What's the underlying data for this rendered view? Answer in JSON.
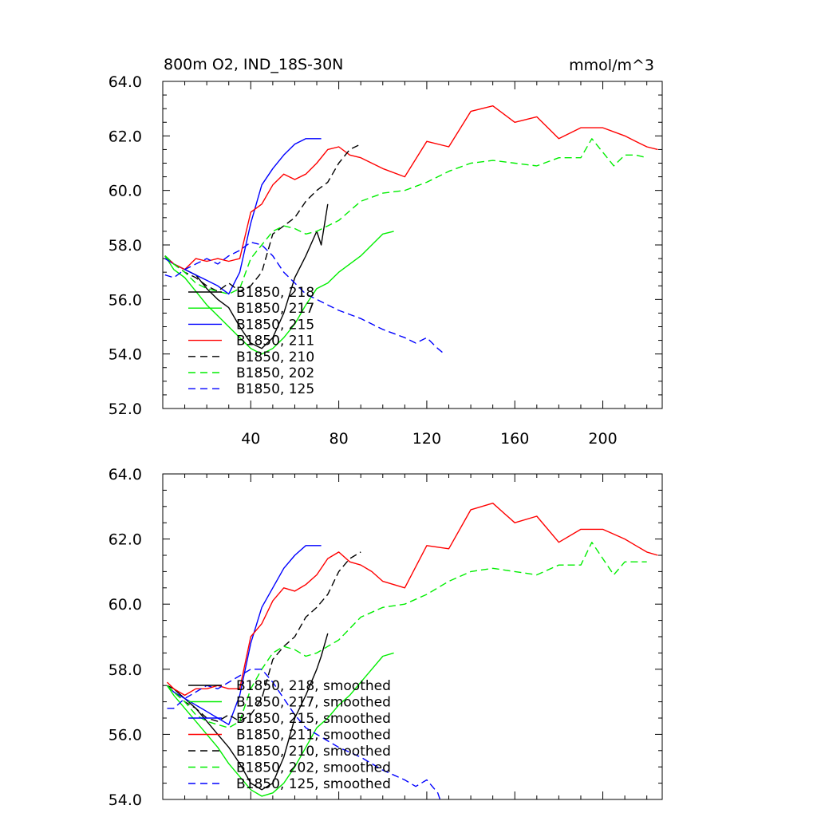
{
  "page": {
    "title": "800m O2, IND_18S-30N",
    "units": "mmol/m^3"
  },
  "chart_data": [
    {
      "type": "line",
      "title": "800m O2, IND_18S-30N",
      "units": "mmol/m^3",
      "xlim": [
        0,
        227
      ],
      "ylim": [
        52,
        64
      ],
      "xticks": [
        40,
        80,
        120,
        160,
        200
      ],
      "xtick_labels": [
        "40",
        "80",
        "120",
        "160",
        "200"
      ],
      "yticks": [
        52,
        54,
        56,
        58,
        60,
        62,
        64
      ],
      "ytick_labels": [
        "52.0",
        "54.0",
        "56.0",
        "58.0",
        "60.0",
        "62.0",
        "64.0"
      ],
      "legend_position": "bottom-left",
      "series": [
        {
          "name": "B1850, 218",
          "color": "#000000",
          "dash": "solid",
          "x": [
            1,
            5,
            10,
            15,
            20,
            25,
            30,
            35,
            40,
            45,
            50,
            55,
            60,
            65,
            70,
            72,
            75
          ],
          "y": [
            57.6,
            57.3,
            57.1,
            56.9,
            56.4,
            56.0,
            55.7,
            55.0,
            54.4,
            54.2,
            54.6,
            55.5,
            56.8,
            57.6,
            58.5,
            58.0,
            59.5
          ]
        },
        {
          "name": "B1850, 217",
          "color": "#00ee00",
          "dash": "solid",
          "x": [
            1,
            5,
            10,
            15,
            20,
            25,
            30,
            35,
            40,
            45,
            50,
            55,
            60,
            65,
            70,
            75,
            80,
            85,
            90,
            95,
            100,
            105
          ],
          "y": [
            57.6,
            57.1,
            56.8,
            56.3,
            55.8,
            55.4,
            55.0,
            54.6,
            54.2,
            54.0,
            54.2,
            54.6,
            55.1,
            55.8,
            56.4,
            56.6,
            57.0,
            57.3,
            57.6,
            58.0,
            58.4,
            58.5
          ]
        },
        {
          "name": "B1850, 215",
          "color": "#0000ff",
          "dash": "solid",
          "x": [
            1,
            5,
            10,
            15,
            20,
            25,
            30,
            35,
            40,
            45,
            50,
            55,
            60,
            65,
            70,
            72
          ],
          "y": [
            57.5,
            57.3,
            57.1,
            56.9,
            56.7,
            56.5,
            56.2,
            57.0,
            58.8,
            60.2,
            60.8,
            61.3,
            61.7,
            61.9,
            61.9,
            61.9
          ]
        },
        {
          "name": "B1850, 211",
          "color": "#ff0000",
          "dash": "solid",
          "x": [
            1,
            5,
            10,
            15,
            20,
            25,
            30,
            35,
            40,
            45,
            50,
            55,
            60,
            65,
            70,
            75,
            80,
            85,
            90,
            95,
            100,
            110,
            120,
            130,
            140,
            150,
            160,
            170,
            180,
            190,
            200,
            210,
            215,
            220,
            225
          ],
          "y": [
            57.6,
            57.3,
            57.1,
            57.5,
            57.4,
            57.5,
            57.4,
            57.5,
            59.2,
            59.5,
            60.2,
            60.6,
            60.4,
            60.6,
            61.0,
            61.5,
            61.6,
            61.3,
            61.2,
            61.0,
            60.8,
            60.5,
            61.8,
            61.6,
            62.9,
            63.1,
            62.5,
            62.7,
            61.9,
            62.3,
            62.3,
            62.0,
            61.8,
            61.6,
            61.5
          ]
        },
        {
          "name": "B1850, 210",
          "color": "#000000",
          "dash": "dash",
          "x": [
            1,
            5,
            10,
            15,
            20,
            25,
            30,
            35,
            40,
            45,
            50,
            55,
            60,
            65,
            70,
            75,
            80,
            85,
            90
          ],
          "y": [
            57.6,
            57.3,
            57.0,
            56.8,
            56.5,
            56.3,
            56.6,
            56.3,
            56.5,
            57.0,
            58.4,
            58.7,
            59.0,
            59.6,
            60.0,
            60.3,
            61.0,
            61.5,
            61.7
          ]
        },
        {
          "name": "B1850, 202",
          "color": "#00ee00",
          "dash": "dash",
          "x": [
            1,
            5,
            10,
            15,
            20,
            25,
            30,
            35,
            40,
            45,
            50,
            55,
            60,
            65,
            70,
            75,
            80,
            90,
            100,
            110,
            120,
            130,
            140,
            150,
            160,
            170,
            180,
            190,
            195,
            200,
            205,
            210,
            215,
            220
          ],
          "y": [
            57.6,
            57.3,
            57.0,
            56.6,
            56.4,
            56.3,
            56.2,
            56.4,
            57.5,
            58.0,
            58.5,
            58.7,
            58.6,
            58.4,
            58.5,
            58.7,
            58.9,
            59.6,
            59.9,
            60.0,
            60.3,
            60.7,
            61.0,
            61.1,
            61.0,
            60.9,
            61.2,
            61.2,
            61.9,
            61.4,
            60.9,
            61.3,
            61.3,
            61.2
          ]
        },
        {
          "name": "B1850, 125",
          "color": "#0000ff",
          "dash": "dash",
          "x": [
            1,
            5,
            10,
            15,
            20,
            25,
            30,
            35,
            40,
            45,
            50,
            55,
            60,
            65,
            70,
            75,
            80,
            90,
            100,
            110,
            115,
            120,
            125,
            128
          ],
          "y": [
            56.9,
            56.8,
            57.1,
            57.3,
            57.5,
            57.3,
            57.6,
            57.8,
            58.1,
            58.0,
            57.6,
            57.0,
            56.6,
            56.2,
            56.0,
            55.8,
            55.6,
            55.3,
            54.9,
            54.6,
            54.4,
            54.6,
            54.2,
            54.0
          ]
        }
      ]
    },
    {
      "type": "line",
      "xlim": [
        0,
        227
      ],
      "ylim": [
        54,
        64
      ],
      "xticks": [
        40,
        80,
        120,
        160,
        200
      ],
      "xtick_labels": [],
      "yticks": [
        54,
        56,
        58,
        60,
        62,
        64
      ],
      "ytick_labels": [
        "54.0",
        "56.0",
        "58.0",
        "60.0",
        "62.0",
        "64.0"
      ],
      "legend_position": "bottom-left",
      "series": [
        {
          "name": "B1850, 218, smoothed",
          "color": "#000000",
          "dash": "solid",
          "x": [
            2,
            5,
            10,
            15,
            20,
            25,
            30,
            35,
            40,
            45,
            50,
            55,
            60,
            65,
            70,
            72,
            75
          ],
          "y": [
            57.5,
            57.4,
            57.1,
            56.8,
            56.4,
            56.0,
            55.6,
            55.1,
            54.5,
            54.3,
            54.5,
            55.3,
            56.5,
            57.2,
            58.0,
            58.4,
            59.1
          ]
        },
        {
          "name": "B1850, 217, smoothed",
          "color": "#00ee00",
          "dash": "solid",
          "x": [
            2,
            5,
            10,
            15,
            20,
            25,
            30,
            35,
            40,
            45,
            50,
            55,
            60,
            65,
            70,
            75,
            80,
            85,
            90,
            95,
            100,
            105
          ],
          "y": [
            57.5,
            57.2,
            56.8,
            56.4,
            56.0,
            55.6,
            55.1,
            54.7,
            54.3,
            54.1,
            54.2,
            54.5,
            55.0,
            55.6,
            56.2,
            56.5,
            56.9,
            57.2,
            57.6,
            58.0,
            58.4,
            58.5
          ]
        },
        {
          "name": "B1850, 215, smoothed",
          "color": "#0000ff",
          "dash": "solid",
          "x": [
            2,
            5,
            10,
            15,
            20,
            25,
            30,
            35,
            40,
            45,
            50,
            55,
            60,
            65,
            70,
            72
          ],
          "y": [
            57.5,
            57.3,
            57.1,
            56.9,
            56.7,
            56.5,
            56.3,
            57.2,
            58.8,
            59.9,
            60.5,
            61.1,
            61.5,
            61.8,
            61.8,
            61.8
          ]
        },
        {
          "name": "B1850, 211, smoothed",
          "color": "#ff0000",
          "dash": "solid",
          "x": [
            2,
            5,
            10,
            15,
            20,
            25,
            30,
            35,
            40,
            45,
            50,
            55,
            60,
            65,
            70,
            75,
            80,
            85,
            90,
            95,
            100,
            110,
            120,
            130,
            140,
            150,
            160,
            170,
            180,
            190,
            200,
            210,
            215,
            220,
            225
          ],
          "y": [
            57.6,
            57.4,
            57.2,
            57.4,
            57.4,
            57.5,
            57.4,
            57.4,
            59.0,
            59.4,
            60.1,
            60.5,
            60.4,
            60.6,
            60.9,
            61.4,
            61.6,
            61.3,
            61.2,
            61.0,
            60.7,
            60.5,
            61.8,
            61.7,
            62.9,
            63.1,
            62.5,
            62.7,
            61.9,
            62.3,
            62.3,
            62.0,
            61.8,
            61.6,
            61.5
          ]
        },
        {
          "name": "B1850, 210, smoothed",
          "color": "#000000",
          "dash": "dash",
          "x": [
            2,
            5,
            10,
            15,
            20,
            25,
            30,
            35,
            40,
            45,
            50,
            55,
            60,
            65,
            70,
            75,
            80,
            85,
            90
          ],
          "y": [
            57.5,
            57.3,
            57.0,
            56.8,
            56.5,
            56.4,
            56.6,
            56.4,
            56.6,
            57.1,
            58.3,
            58.7,
            59.0,
            59.6,
            59.9,
            60.3,
            61.0,
            61.4,
            61.6
          ]
        },
        {
          "name": "B1850, 202, smoothed",
          "color": "#00ee00",
          "dash": "dash",
          "x": [
            2,
            5,
            10,
            15,
            20,
            25,
            30,
            35,
            40,
            45,
            50,
            55,
            60,
            65,
            70,
            75,
            80,
            90,
            100,
            110,
            120,
            130,
            140,
            150,
            160,
            170,
            180,
            190,
            195,
            200,
            205,
            210,
            215,
            220
          ],
          "y": [
            57.5,
            57.3,
            57.0,
            56.6,
            56.4,
            56.3,
            56.2,
            56.4,
            57.4,
            58.0,
            58.5,
            58.7,
            58.6,
            58.4,
            58.5,
            58.7,
            58.9,
            59.6,
            59.9,
            60.0,
            60.3,
            60.7,
            61.0,
            61.1,
            61.0,
            60.9,
            61.2,
            61.2,
            61.9,
            61.4,
            60.9,
            61.3,
            61.3,
            61.3
          ]
        },
        {
          "name": "B1850, 125, smoothed",
          "color": "#0000ff",
          "dash": "dash",
          "x": [
            2,
            5,
            10,
            15,
            20,
            25,
            30,
            35,
            40,
            45,
            50,
            55,
            60,
            65,
            70,
            75,
            80,
            90,
            100,
            110,
            115,
            120,
            125,
            126
          ],
          "y": [
            56.8,
            56.8,
            57.1,
            57.3,
            57.5,
            57.4,
            57.6,
            57.8,
            58.0,
            58.0,
            57.6,
            57.1,
            56.6,
            56.2,
            56.0,
            55.8,
            55.6,
            55.3,
            54.9,
            54.6,
            54.4,
            54.6,
            54.2,
            54.0
          ]
        }
      ]
    }
  ]
}
